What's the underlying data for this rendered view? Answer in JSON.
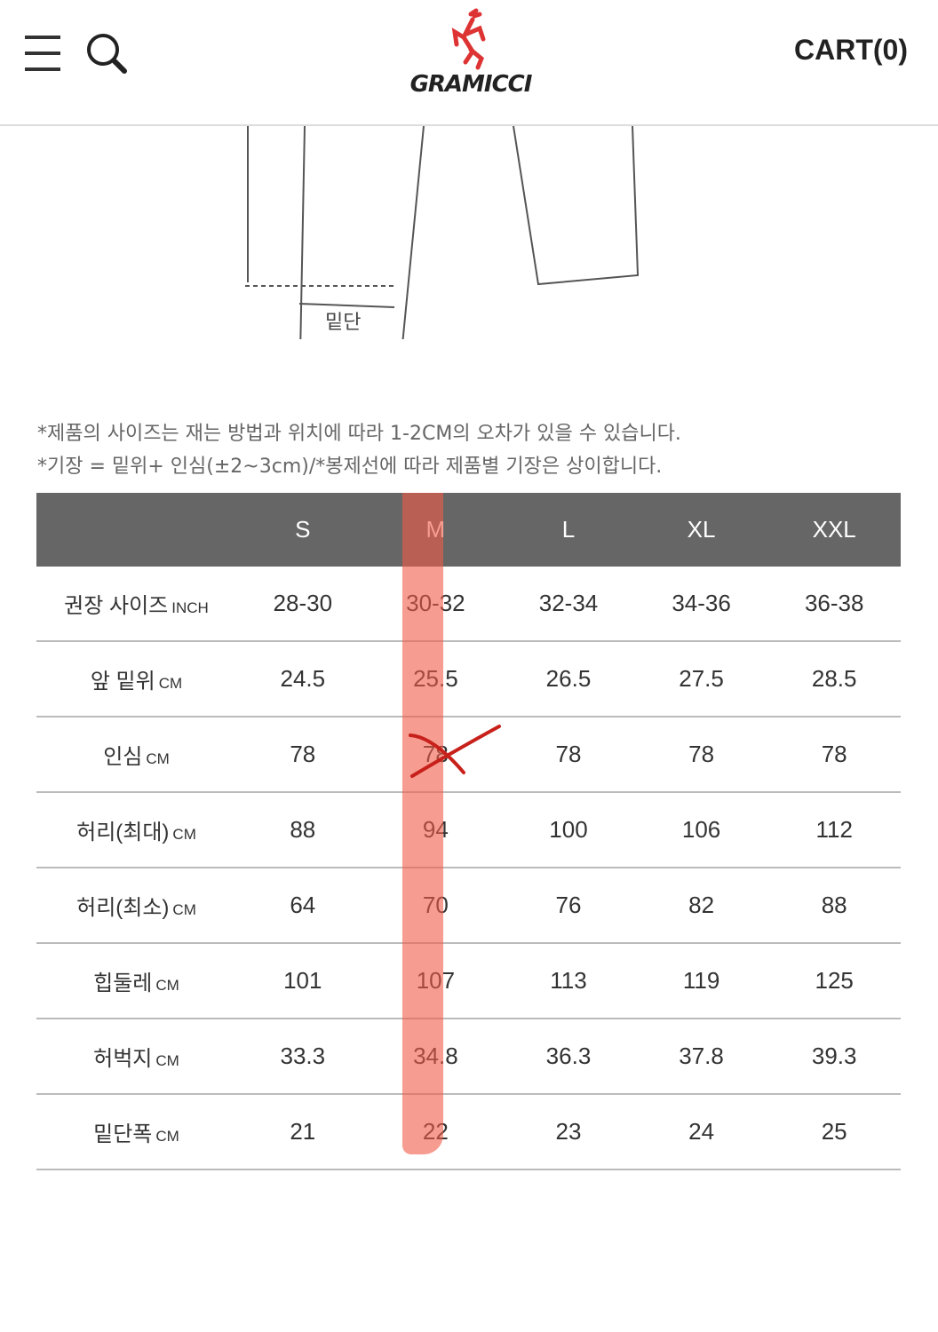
{
  "header": {
    "logo_text": "GRAMICCI",
    "cart_label": "CART(0)",
    "icons": [
      "menu-icon",
      "search-icon"
    ]
  },
  "diagram": {
    "hem_label": "밑단"
  },
  "notes": [
    "*제품의 사이즈는 재는 방법과 위치에 따라 1-2CM의 오차가 있을 수 있습니다.",
    "*기장 = 밑위+ 인심(±2~3cm)/*봉제선에 따라 제품별 기장은 상이합니다."
  ],
  "table": {
    "columns": [
      "",
      "S",
      "M",
      "L",
      "XL",
      "XXL"
    ],
    "rows": [
      {
        "label": "권장 사이즈",
        "unit": "INCH",
        "values": [
          "28-30",
          "30-32",
          "32-34",
          "34-36",
          "36-38"
        ]
      },
      {
        "label": "앞 밑위",
        "unit": "CM",
        "values": [
          "24.5",
          "25.5",
          "26.5",
          "27.5",
          "28.5"
        ]
      },
      {
        "label": "인심",
        "unit": "CM",
        "values": [
          "78",
          "78",
          "78",
          "78",
          "78"
        ]
      },
      {
        "label": "허리(최대)",
        "unit": "CM",
        "values": [
          "88",
          "94",
          "100",
          "106",
          "112"
        ]
      },
      {
        "label": "허리(최소)",
        "unit": "CM",
        "values": [
          "64",
          "70",
          "76",
          "82",
          "88"
        ]
      },
      {
        "label": "힙둘레",
        "unit": "CM",
        "values": [
          "101",
          "107",
          "113",
          "119",
          "125"
        ]
      },
      {
        "label": "허벅지",
        "unit": "CM",
        "values": [
          "33.3",
          "34.8",
          "36.3",
          "37.8",
          "39.3"
        ]
      },
      {
        "label": "밑단폭",
        "unit": "CM",
        "values": [
          "21",
          "22",
          "23",
          "24",
          "25"
        ]
      }
    ]
  },
  "annotation": {
    "highlight_color": "#f05a46",
    "highlighted_column": "M",
    "crossed_cell": "인심 M"
  }
}
